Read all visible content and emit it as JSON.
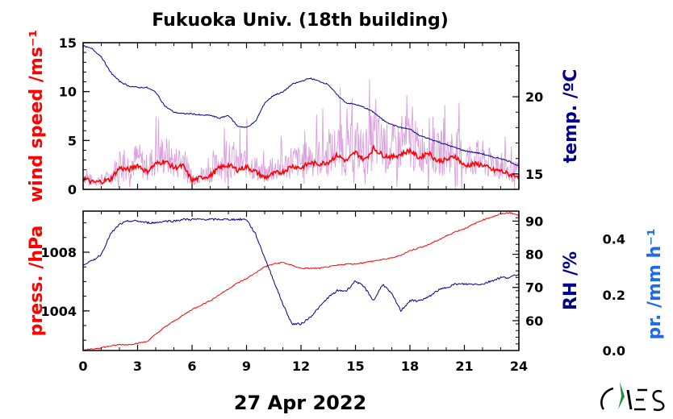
{
  "title": "Fukuoka Univ. (18th building)",
  "date_label": "27 Apr 2022",
  "colors": {
    "wind": "#ff0000",
    "wind_raw": "#d9a0dd",
    "temp": "#00008b",
    "press": "#ff0000",
    "rh": "#00008b",
    "precip": "#1e6be6"
  },
  "chart_data": [
    {
      "type": "line",
      "panel": "top",
      "xlim": [
        0,
        24
      ],
      "xticks": [
        "0",
        "3",
        "6",
        "9",
        "12",
        "15",
        "18",
        "21",
        "24"
      ],
      "left_axis": {
        "label": "wind speed /ms⁻¹",
        "ylim": [
          0,
          15
        ],
        "ticks": [
          "0",
          "5",
          "10",
          "15"
        ]
      },
      "right_axis": {
        "label": "temp. /ºC",
        "ylim": [
          14,
          23.5
        ],
        "ticks": [
          "15",
          "20"
        ]
      },
      "series": [
        {
          "axis": "left",
          "x": [
            0,
            0.5,
            1,
            1.5,
            2,
            2.5,
            3,
            3.5,
            4,
            4.5,
            5,
            5.5,
            6,
            6.5,
            7,
            7.5,
            8,
            8.5,
            9,
            9.5,
            10,
            10.5,
            11,
            11.5,
            12,
            12.5,
            13,
            13.5,
            14,
            14.5,
            15,
            15.5,
            16,
            16.5,
            17,
            17.5,
            18,
            18.5,
            19,
            19.5,
            20,
            20.5,
            21,
            21.5,
            22,
            22.5,
            23,
            23.5,
            24
          ],
          "values": [
            1.2,
            0.7,
            0.8,
            1.0,
            2.2,
            2.0,
            2.5,
            1.8,
            2.6,
            2.9,
            2.2,
            2.4,
            0.9,
            1.2,
            1.4,
            2.2,
            2.5,
            2.0,
            2.3,
            1.8,
            1.2,
            1.6,
            1.8,
            2.4,
            2.2,
            2.7,
            2.6,
            2.8,
            3.5,
            2.9,
            3.8,
            3.0,
            4.2,
            3.5,
            3.3,
            3.6,
            4.0,
            3.2,
            3.8,
            2.9,
            3.0,
            3.4,
            2.4,
            2.6,
            2.5,
            2.0,
            1.9,
            1.5,
            1.4
          ]
        },
        {
          "axis": "right",
          "x": [
            0,
            0.5,
            1,
            1.5,
            2,
            2.5,
            3,
            3.5,
            4,
            4.5,
            5,
            5.5,
            6,
            6.5,
            7,
            7.5,
            8,
            8.5,
            9,
            9.5,
            10,
            10.5,
            11,
            11.5,
            12,
            12.5,
            13,
            13.5,
            14,
            14.5,
            15,
            15.5,
            16,
            16.5,
            17,
            17.5,
            18,
            18.5,
            19,
            19.5,
            20,
            20.5,
            21,
            21.5,
            22,
            22.5,
            23,
            23.5,
            24
          ],
          "values": [
            23.3,
            23.1,
            22.6,
            21.6,
            21.0,
            20.7,
            20.6,
            20.6,
            20.3,
            19.4,
            19.0,
            18.9,
            18.9,
            18.8,
            18.8,
            18.6,
            18.8,
            18.1,
            18.0,
            18.4,
            19.6,
            20.1,
            20.3,
            20.8,
            21.0,
            21.2,
            21.0,
            20.8,
            20.1,
            19.6,
            19.5,
            19.3,
            19.0,
            18.5,
            18.2,
            18.0,
            17.9,
            17.5,
            17.3,
            17.1,
            16.9,
            16.7,
            16.5,
            16.4,
            16.3,
            16.1,
            16.0,
            15.8,
            15.5
          ]
        }
      ]
    },
    {
      "type": "line",
      "panel": "bottom",
      "xlim": [
        0,
        24
      ],
      "xticks": [
        "0",
        "3",
        "6",
        "9",
        "12",
        "15",
        "18",
        "21",
        "24"
      ],
      "left_axis": {
        "label": "press. /hPa",
        "ylim": [
          1001.3,
          1010.8
        ],
        "ticks": [
          "1004",
          "1008"
        ]
      },
      "right_axis": {
        "label": "RH /%",
        "ylim": [
          51,
          93
        ],
        "ticks": [
          "60",
          "70",
          "80",
          "90"
        ]
      },
      "precip_axis": {
        "label": "pr. /mm h⁻¹",
        "ylim": [
          0,
          0.5
        ],
        "ticks": [
          "0.0",
          "0.2",
          "0.4"
        ]
      },
      "series": [
        {
          "axis": "left",
          "x": [
            0,
            0.5,
            1,
            1.5,
            2,
            2.5,
            3,
            3.5,
            4,
            4.5,
            5,
            5.5,
            6,
            6.5,
            7,
            7.5,
            8,
            8.5,
            9,
            9.5,
            10,
            10.5,
            11,
            11.5,
            12,
            12.5,
            13,
            13.5,
            14,
            14.5,
            15,
            15.5,
            16,
            16.5,
            17,
            17.5,
            18,
            18.5,
            19,
            19.5,
            20,
            20.5,
            21,
            21.5,
            22,
            22.5,
            23,
            23.5,
            24
          ],
          "values": [
            1001.3,
            1001.4,
            1001.5,
            1001.6,
            1001.7,
            1001.7,
            1001.8,
            1001.9,
            1002.4,
            1002.9,
            1003.3,
            1003.7,
            1004.1,
            1004.4,
            1004.7,
            1005.1,
            1005.5,
            1005.9,
            1006.2,
            1006.6,
            1007.0,
            1007.2,
            1007.3,
            1007.1,
            1006.9,
            1006.9,
            1006.9,
            1007.0,
            1007.1,
            1007.2,
            1007.2,
            1007.3,
            1007.4,
            1007.5,
            1007.6,
            1007.8,
            1008.1,
            1008.3,
            1008.5,
            1008.8,
            1009.1,
            1009.4,
            1009.6,
            1009.9,
            1010.2,
            1010.4,
            1010.6,
            1010.7,
            1010.5
          ]
        },
        {
          "axis": "right",
          "x": [
            0,
            0.5,
            1,
            1.5,
            2,
            2.5,
            3,
            3.5,
            4,
            4.5,
            5,
            5.5,
            6,
            6.5,
            7,
            7.5,
            8,
            8.5,
            9,
            9.5,
            10,
            10.5,
            11,
            11.5,
            12,
            12.5,
            13,
            13.5,
            14,
            14.5,
            15,
            15.5,
            16,
            16.5,
            17,
            17.5,
            18,
            18.5,
            19,
            19.5,
            20,
            20.5,
            21,
            21.5,
            22,
            22.5,
            23,
            23.5,
            24
          ],
          "values": [
            77,
            78,
            80,
            86,
            89,
            90,
            90,
            89.5,
            89.5,
            90,
            90,
            90.5,
            90.5,
            90.5,
            90.5,
            90.5,
            90.5,
            90.5,
            90.5,
            86,
            79,
            72,
            65,
            59,
            59,
            61,
            64,
            67,
            69,
            69,
            72,
            70,
            66,
            71,
            68,
            63,
            66,
            66,
            67,
            69,
            70,
            71,
            71,
            71,
            71,
            72,
            73,
            73,
            74
          ]
        }
      ]
    }
  ]
}
